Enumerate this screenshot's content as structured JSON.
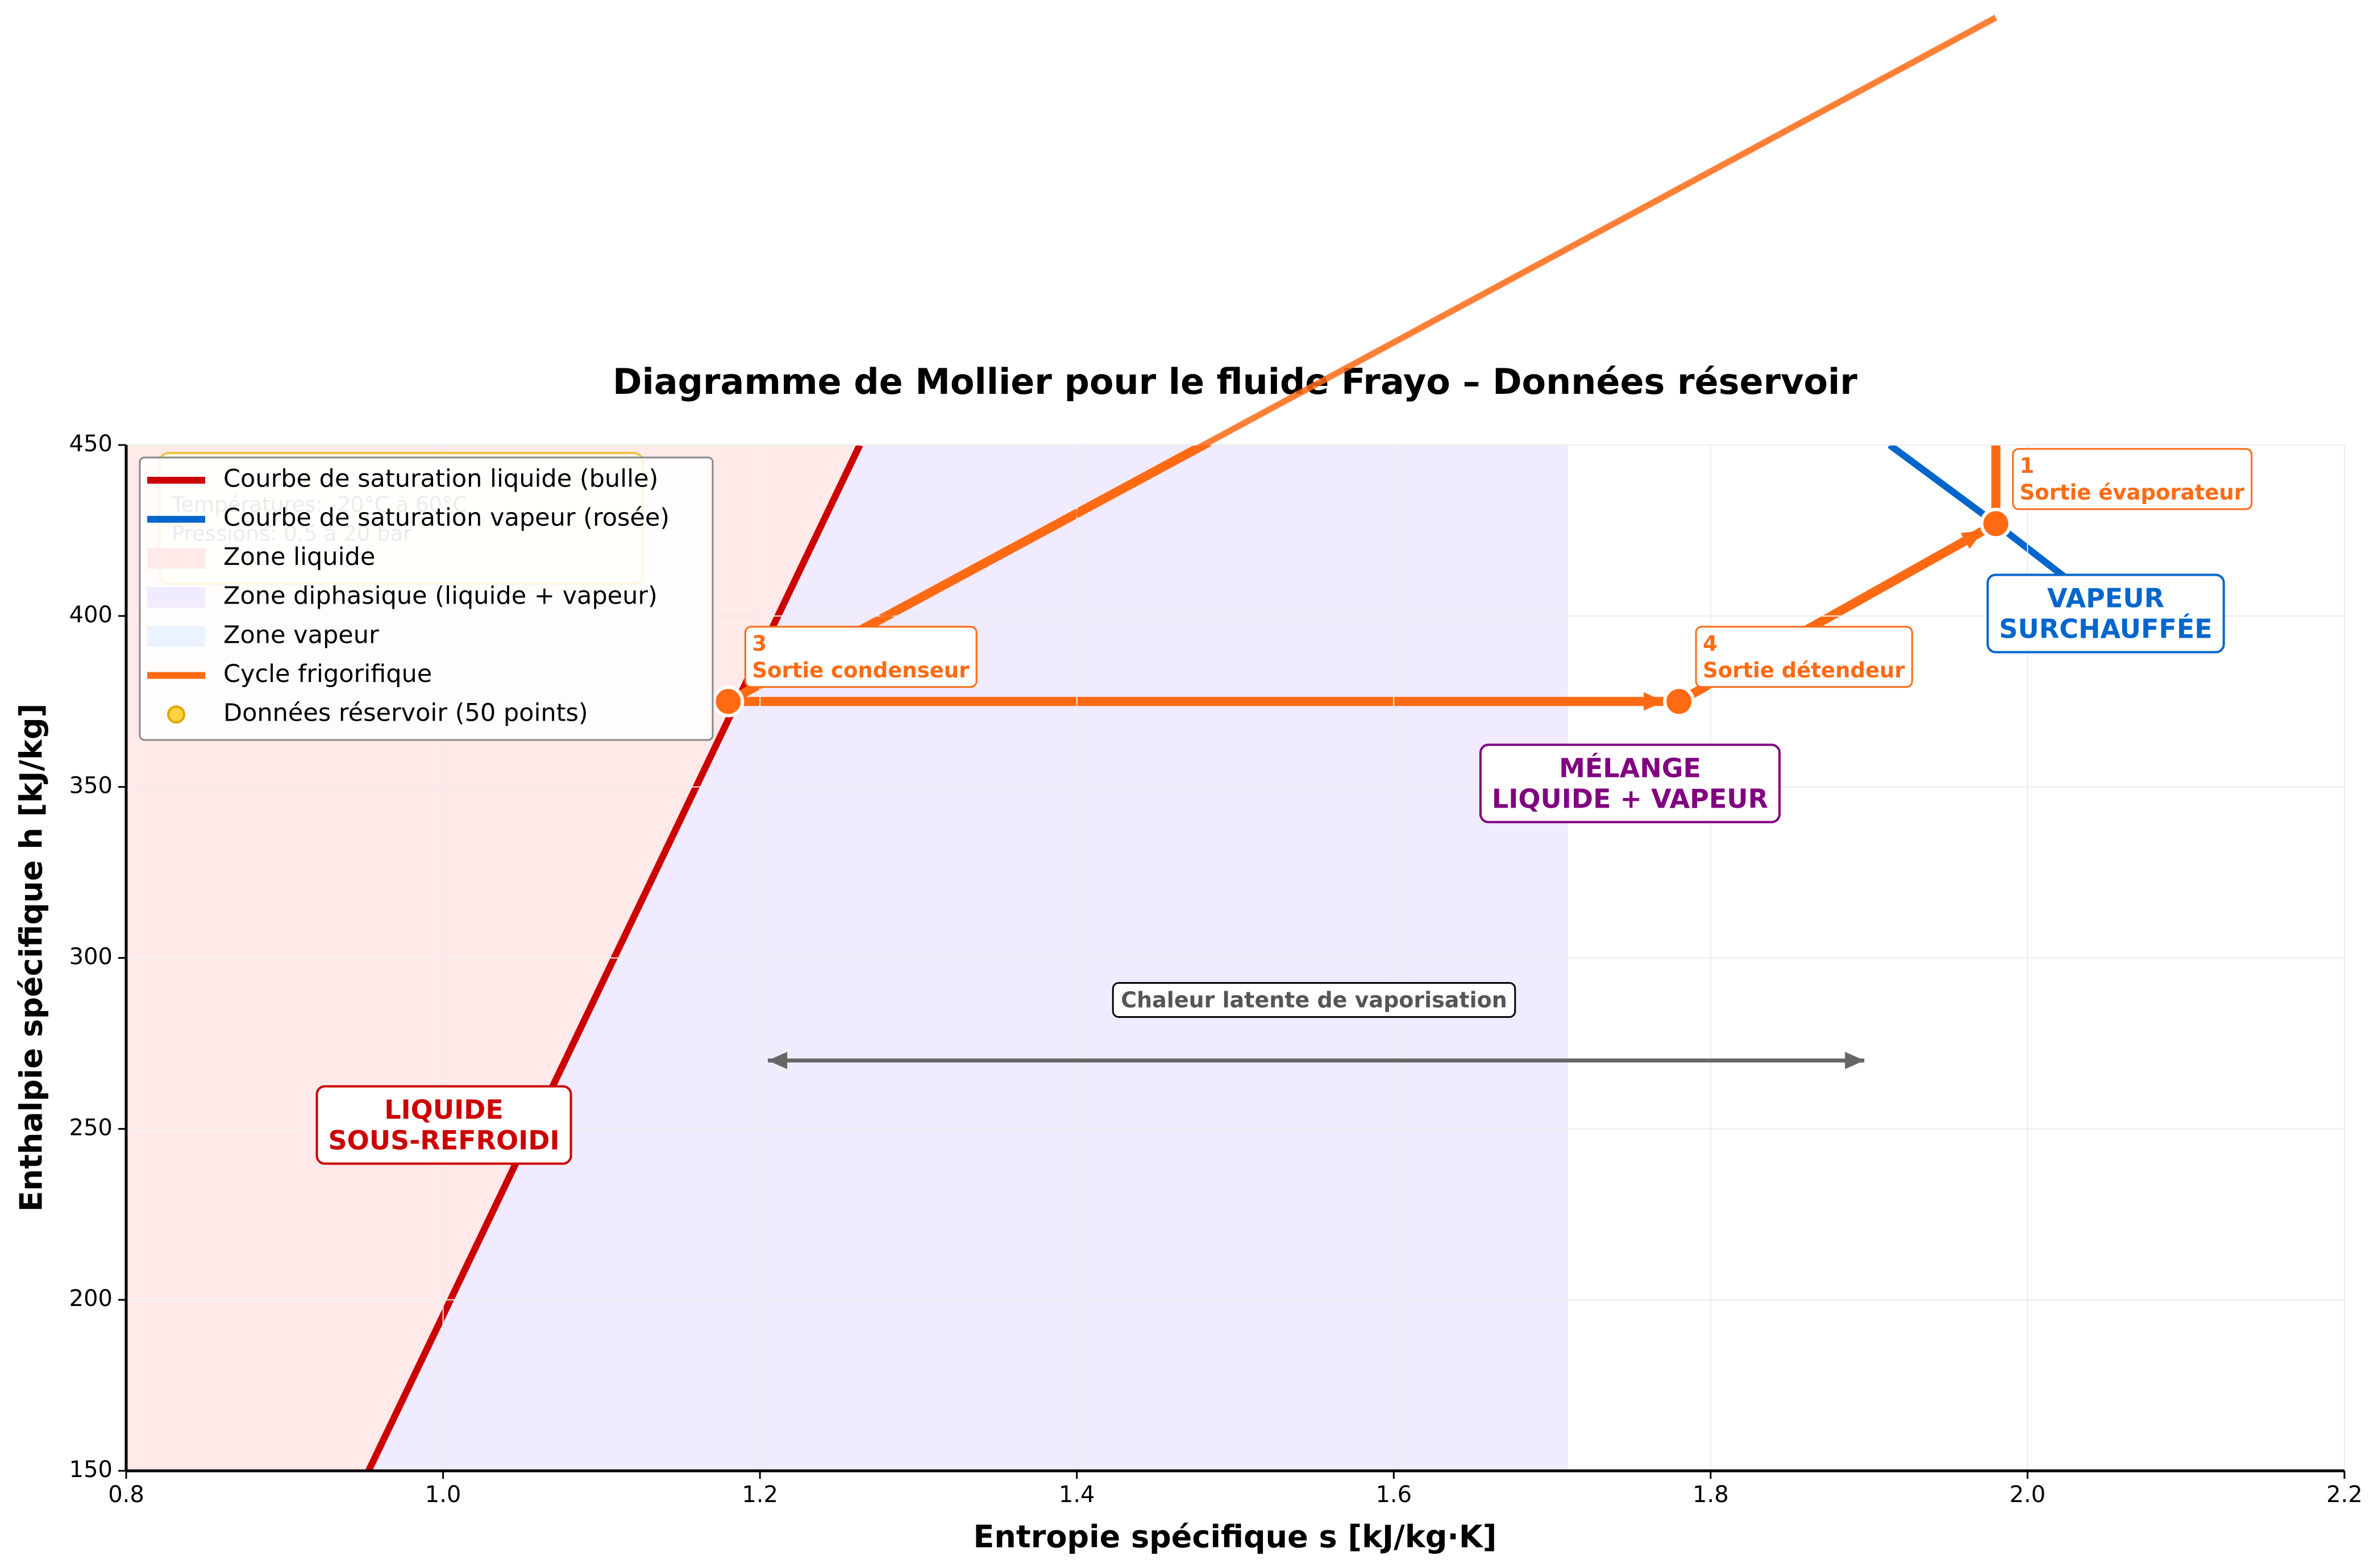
{
  "chart_data": {
    "type": "mollier",
    "title": "Diagramme de Mollier pour le fluide Frayo – Données réservoir",
    "xlabel": "Entropie spécifique s [kJ/kg·K]",
    "ylabel": "Enthalpie spécifique h [kJ/kg]",
    "xlim": [
      0.8,
      2.2
    ],
    "ylim": [
      150,
      450
    ],
    "xticks": [
      0.8,
      {
        "value": 1,
        "label": "1.0"
      },
      1.2,
      1.4,
      1.6,
      1.8,
      {
        "value": 2,
        "label": "2.0"
      },
      2.2
    ],
    "yticks": [
      150,
      200,
      250,
      300,
      350,
      400,
      450
    ],
    "grid": true,
    "legend": "upper left",
    "series": [
      {
        "name": "Courbe de saturation liquide (bulle)",
        "color": "#cc0000",
        "x": [
          0.953,
          1.263
        ],
        "values": [
          150,
          450
        ]
      },
      {
        "name": "Courbe de saturation vapeur (rosée)",
        "color": "#0066cc",
        "x": [
          1.913,
          1.98,
          2.044
        ],
        "values": [
          450,
          427,
          404
        ]
      },
      {
        "name": "Cycle frigorifique",
        "color": "#ff6a13",
        "x": [
          1.98,
          1.98,
          1.18,
          1.78,
          1.98
        ],
        "values": [
          427,
          575,
          375,
          375,
          427
        ]
      }
    ],
    "regions": [
      {
        "name": "Zone liquide",
        "color": "#ffe9e9"
      },
      {
        "name": "Zone diphasique (liquide + vapeur)",
        "color": "#f1ebff",
        "xmax": 1.71
      },
      {
        "name": "Zone vapeur",
        "color": "#eaf3ff"
      }
    ],
    "reservoir": {
      "name": "Données réservoir (50 points)",
      "color": "#ffd23f"
    },
    "state_points": {
      "color": "#ff6a13",
      "x": [
        1.98,
        1.18,
        1.78
      ],
      "values": [
        427,
        375,
        375
      ],
      "labels": [
        "1",
        "3",
        "4"
      ],
      "notes": [
        "Sortie évaporateur",
        "Sortie condenseur",
        "Sortie détendeur"
      ]
    },
    "zone_labels": [
      {
        "lines": [
          "LIQUIDE",
          "SOUS-REFROIDI"
        ],
        "color": "#cc0000"
      },
      {
        "lines": [
          "MÉLANGE",
          "LIQUIDE + VAPEUR"
        ],
        "color": "#800080"
      },
      {
        "lines": [
          "VAPEUR",
          "SURCHAUFFÉE"
        ],
        "color": "#0066cc"
      }
    ],
    "latent_heat": {
      "label": "Chaleur latente de vaporisation",
      "x": [
        1.205,
        1.897
      ],
      "y": 270
    },
    "info_box": [
      "Températures: -20°C à 60°C",
      "Pressions: 0.5 à 20 bar"
    ]
  }
}
